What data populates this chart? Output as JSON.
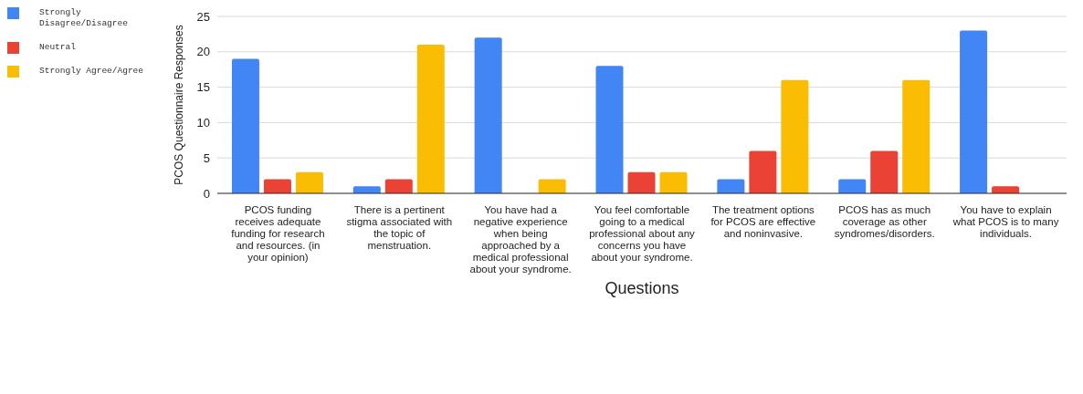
{
  "chart_data": {
    "type": "bar",
    "xlabel": "Questions",
    "ylabel": "PCOS Questionnaire Responses",
    "categories": [
      "PCOS funding receives adequate funding for research and resources. (in your opinion)",
      "There is a pertinent stigma associated with the topic of menstruation.",
      "You have had a negative experience when being approached by a medical professional about your syndrome.",
      "You feel comfortable going to a medical professional about any concerns you have about your syndrome.",
      "The treatment options for PCOS are effective and noninvasive.",
      "PCOS has as much coverage as other syndromes/disorders.",
      "You have to explain what PCOS is to many individuals."
    ],
    "series": [
      {
        "name": "Strongly Disagree/Disagree",
        "color": "#4285f4",
        "values": [
          19,
          1,
          22,
          18,
          2,
          2,
          23
        ]
      },
      {
        "name": "Neutral",
        "color": "#ea4335",
        "values": [
          2,
          2,
          0,
          3,
          6,
          6,
          1
        ]
      },
      {
        "name": "Strongly Agree/Agree",
        "color": "#fbbc04",
        "values": [
          3,
          21,
          2,
          3,
          16,
          16,
          0
        ]
      }
    ],
    "ylim": [
      0,
      25
    ],
    "yticks": [
      0,
      5,
      10,
      15,
      20,
      25
    ],
    "grid": "y",
    "legend": "top left"
  }
}
